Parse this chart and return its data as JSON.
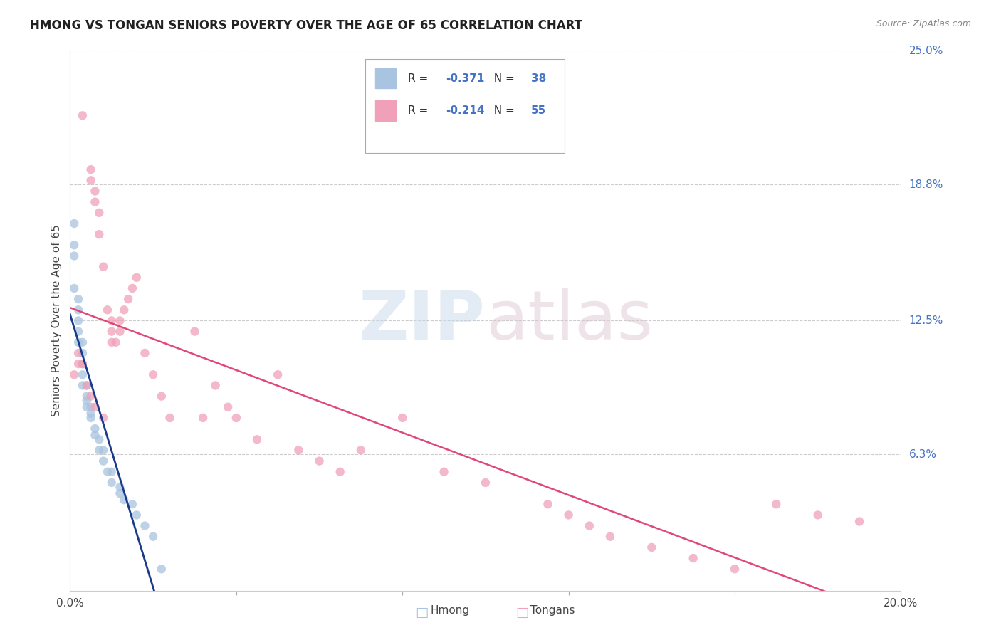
{
  "title": "HMONG VS TONGAN SENIORS POVERTY OVER THE AGE OF 65 CORRELATION CHART",
  "source": "Source: ZipAtlas.com",
  "ylabel": "Seniors Poverty Over the Age of 65",
  "xlim": [
    0.0,
    0.2
  ],
  "ylim": [
    0.0,
    0.25
  ],
  "xticks": [
    0.0,
    0.04,
    0.08,
    0.12,
    0.16,
    0.2
  ],
  "xticklabels": [
    "0.0%",
    "",
    "",
    "",
    "",
    "20.0%"
  ],
  "ytick_positions": [
    0.0,
    0.063,
    0.125,
    0.188,
    0.25
  ],
  "ytick_labels": [
    "",
    "6.3%",
    "12.5%",
    "18.8%",
    "25.0%"
  ],
  "grid_color": "#cccccc",
  "background_color": "#ffffff",
  "hmong_color": "#a8c4e0",
  "tongan_color": "#f0a0b8",
  "hmong_line_color": "#1a3a8a",
  "tongan_line_color": "#e04878",
  "hmong_x": [
    0.001,
    0.001,
    0.001,
    0.001,
    0.002,
    0.002,
    0.002,
    0.002,
    0.002,
    0.003,
    0.003,
    0.003,
    0.003,
    0.004,
    0.004,
    0.004,
    0.005,
    0.005,
    0.005,
    0.006,
    0.006,
    0.007,
    0.007,
    0.008,
    0.008,
    0.009,
    0.01,
    0.01,
    0.012,
    0.012,
    0.013,
    0.015,
    0.016,
    0.018,
    0.02,
    0.022,
    0.003,
    0.004
  ],
  "hmong_y": [
    0.17,
    0.16,
    0.155,
    0.14,
    0.135,
    0.13,
    0.125,
    0.12,
    0.115,
    0.115,
    0.11,
    0.105,
    0.1,
    0.095,
    0.09,
    0.085,
    0.085,
    0.082,
    0.08,
    0.075,
    0.072,
    0.07,
    0.065,
    0.065,
    0.06,
    0.055,
    0.055,
    0.05,
    0.048,
    0.045,
    0.042,
    0.04,
    0.035,
    0.03,
    0.025,
    0.01,
    0.095,
    0.088
  ],
  "tongan_x": [
    0.003,
    0.005,
    0.005,
    0.006,
    0.006,
    0.007,
    0.007,
    0.008,
    0.009,
    0.01,
    0.01,
    0.011,
    0.012,
    0.013,
    0.014,
    0.015,
    0.016,
    0.018,
    0.02,
    0.022,
    0.024,
    0.03,
    0.032,
    0.035,
    0.038,
    0.04,
    0.045,
    0.05,
    0.055,
    0.06,
    0.065,
    0.07,
    0.08,
    0.09,
    0.1,
    0.115,
    0.12,
    0.125,
    0.13,
    0.14,
    0.15,
    0.16,
    0.17,
    0.18,
    0.19,
    0.001,
    0.002,
    0.002,
    0.003,
    0.004,
    0.005,
    0.006,
    0.008,
    0.01,
    0.012
  ],
  "tongan_y": [
    0.22,
    0.19,
    0.195,
    0.18,
    0.185,
    0.175,
    0.165,
    0.15,
    0.13,
    0.12,
    0.125,
    0.115,
    0.12,
    0.13,
    0.135,
    0.14,
    0.145,
    0.11,
    0.1,
    0.09,
    0.08,
    0.12,
    0.08,
    0.095,
    0.085,
    0.08,
    0.07,
    0.1,
    0.065,
    0.06,
    0.055,
    0.065,
    0.08,
    0.055,
    0.05,
    0.04,
    0.035,
    0.03,
    0.025,
    0.02,
    0.015,
    0.01,
    0.04,
    0.035,
    0.032,
    0.1,
    0.105,
    0.11,
    0.105,
    0.095,
    0.09,
    0.085,
    0.08,
    0.115,
    0.125
  ]
}
